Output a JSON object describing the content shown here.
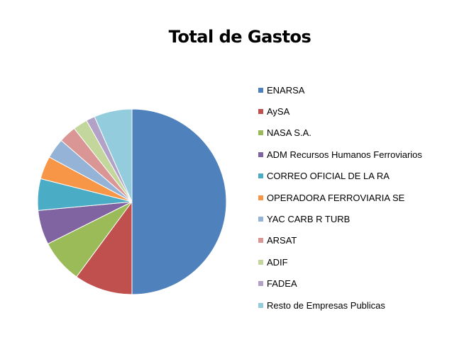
{
  "chart_data": {
    "type": "pie",
    "title": "Total de Gastos",
    "legend_position": "right",
    "slices": [
      {
        "label": "ENARSA",
        "value": 50.0,
        "color": "#4F81BD"
      },
      {
        "label": "AySA",
        "value": 10.0,
        "color": "#C0504D"
      },
      {
        "label": "NASA S.A.",
        "value": 7.5,
        "color": "#9BBB59"
      },
      {
        "label": "ADM Recursos Humanos Ferroviarios",
        "value": 6.0,
        "color": "#8064A2"
      },
      {
        "label": "CORREO OFICIAL DE LA RA",
        "value": 5.5,
        "color": "#4BACC6"
      },
      {
        "label": "OPERADORA FERROVIARIA SE",
        "value": 4.0,
        "color": "#F79646"
      },
      {
        "label": "YAC CARB R TURB",
        "value": 3.5,
        "color": "#95B3D7"
      },
      {
        "label": "ARSAT",
        "value": 3.0,
        "color": "#D99694"
      },
      {
        "label": "ADIF",
        "value": 2.5,
        "color": "#C3D69B"
      },
      {
        "label": "FADEA",
        "value": 1.5,
        "color": "#B2A2C7"
      },
      {
        "label": "Resto de Empresas Publicas",
        "value": 6.5,
        "color": "#93CDDD"
      }
    ]
  }
}
